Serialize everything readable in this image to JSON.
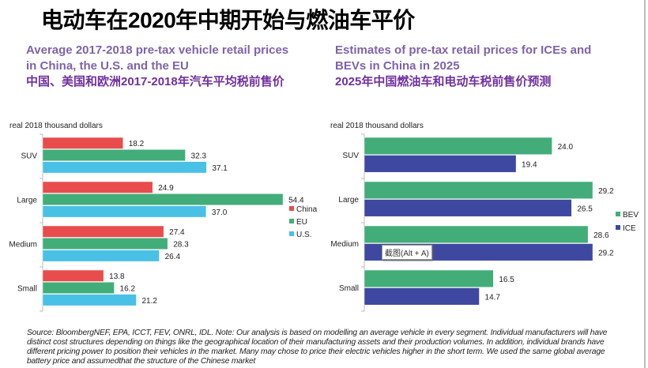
{
  "title": "电动车在2020年中期开始与燃油车平价",
  "footnote": "Source: BloombergNEF, EPA, ICCT, FEV, ONRL, IDL. Note: Our analysis is based on modelling an average vehicle in every segment. Individual manufacturers will have distinct cost structures depending on things like the geographical location of their manufacturing assets and their production volumes. In addition, individual brands have different pricing power to position their vehicles in the market. Many may chose to price their electric vehicles higher in the short term. We used the same global average battery price and assumedthat the structure of the Chinese market",
  "tooltip": "截图(Alt + A)",
  "chart_data": [
    {
      "type": "bar",
      "orientation": "horizontal",
      "title_en_1": "Average 2017-2018 pre-tax vehicle retail prices",
      "title_en_2": "in China, the U.S. and the EU",
      "title_cn": "中国、美国和欧洲2017-2018年汽车平均税前售价",
      "unit_label": "real 2018 thousand dollars",
      "categories": [
        "SUV",
        "Large",
        "Medium",
        "Small"
      ],
      "series": [
        {
          "name": "China",
          "color": "#e84c4c",
          "values": [
            18.2,
            24.9,
            27.4,
            13.8
          ],
          "labels": [
            "18.2",
            "24.9",
            "27.4",
            "13.8"
          ]
        },
        {
          "name": "EU",
          "color": "#43ad7a",
          "values": [
            32.3,
            54.4,
            28.3,
            16.2
          ],
          "labels": [
            "32.3",
            "54.4",
            "28.3",
            "16.2"
          ]
        },
        {
          "name": "U.S.",
          "color": "#49c0e6",
          "values": [
            37.1,
            37.0,
            26.4,
            21.2
          ],
          "labels": [
            "37.1",
            "37.0",
            "26.4",
            "21.2"
          ]
        }
      ],
      "legend": "right",
      "grid": false
    },
    {
      "type": "bar",
      "orientation": "horizontal",
      "title_en_1": "Estimates of pre-tax retail prices for ICEs and",
      "title_en_2": "BEVs in China in 2025",
      "title_cn": "2025年中国燃油车和电动车税前售价预测",
      "unit_label": "real 2018 thousand dollars",
      "categories": [
        "SUV",
        "Large",
        "Medium",
        "Small"
      ],
      "series": [
        {
          "name": "BEV",
          "color": "#43ad7a",
          "values": [
            24.0,
            29.2,
            28.6,
            16.5
          ],
          "labels": [
            "24.0",
            "29.2",
            "28.6",
            "16.5"
          ]
        },
        {
          "name": "ICE",
          "color": "#3f48a0",
          "values": [
            19.4,
            26.5,
            29.2,
            14.7
          ],
          "labels": [
            "19.4",
            "26.5",
            "29.2",
            "14.7"
          ]
        }
      ],
      "legend": "right",
      "grid": false
    }
  ]
}
